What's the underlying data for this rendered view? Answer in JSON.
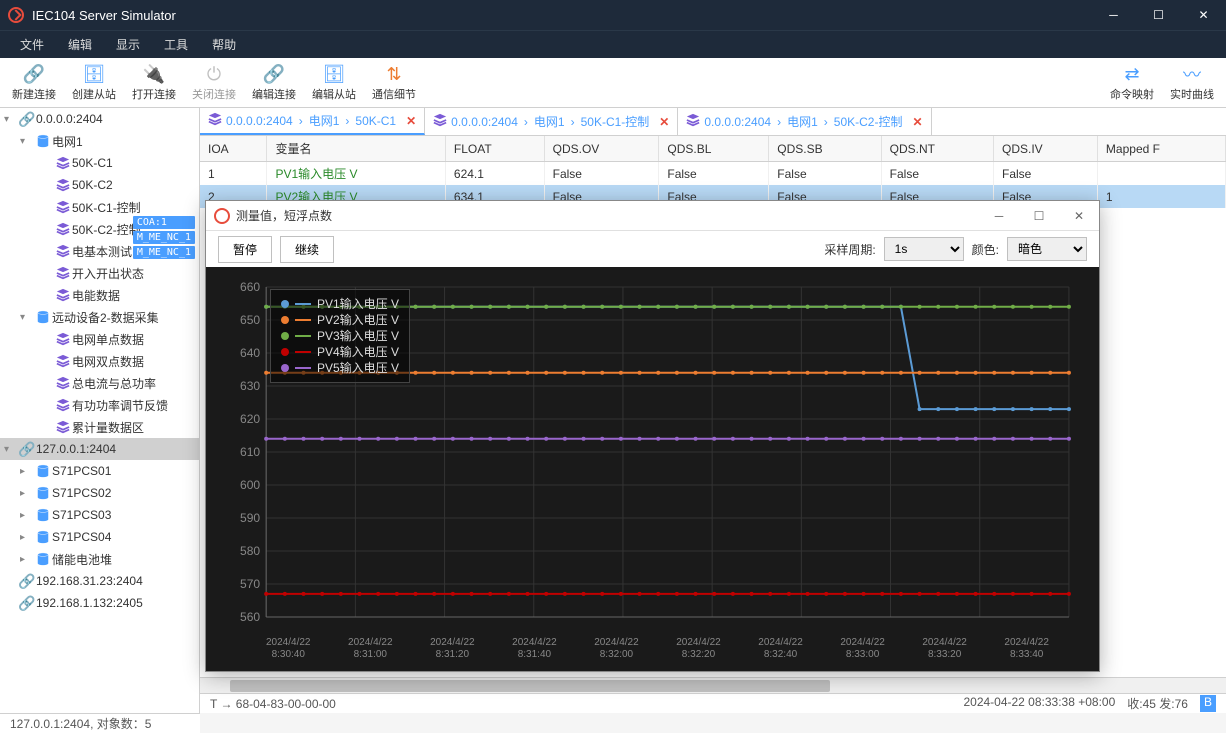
{
  "window": {
    "title": "IEC104 Server Simulator"
  },
  "menu": {
    "file": "文件",
    "edit": "编辑",
    "view": "显示",
    "tools": "工具",
    "help": "帮助"
  },
  "toolbar": {
    "new_conn": "新建连接",
    "create_slave": "创建从站",
    "open_conn": "打开连接",
    "close_conn": "关闭连接",
    "edit_conn": "编辑连接",
    "edit_slave": "编辑从站",
    "comm_detail": "通信细节",
    "cmd_map": "命令映射",
    "realtime": "实时曲线"
  },
  "tree": {
    "n1": {
      "addr": "0.0.0.0:2404"
    },
    "n1_net": "电网1",
    "n1_children": [
      "50K-C1",
      "50K-C2",
      "50K-C1-控制",
      "50K-C2-控制",
      "电基本测试区",
      "开入开出状态",
      "电能数据"
    ],
    "n1_dev2": "远动设备2-数据采集",
    "n1_dev2_children": [
      "电网单点数据",
      "电网双点数据",
      "总电流与总功率",
      "有功功率调节反馈",
      "累计量数据区"
    ],
    "n2": {
      "addr": "127.0.0.1:2404"
    },
    "n2_children": [
      "S71PCS01",
      "S71PCS02",
      "S71PCS03",
      "S71PCS04",
      "储能电池堆"
    ],
    "n3": "192.168.31.23:2404",
    "n4": "192.168.1.132:2405",
    "badges": [
      "COA:1",
      "M_ME_NC_1",
      "M_ME_NC_1"
    ]
  },
  "tabs": [
    {
      "parts": [
        "0.0.0.0:2404",
        "电网1",
        "50K-C1"
      ],
      "active": true
    },
    {
      "parts": [
        "0.0.0.0:2404",
        "电网1",
        "50K-C1-控制"
      ]
    },
    {
      "parts": [
        "0.0.0.0:2404",
        "电网1",
        "50K-C2-控制"
      ]
    }
  ],
  "grid": {
    "columns": [
      "IOA",
      "变量名",
      "FLOAT",
      "QDS.OV",
      "QDS.BL",
      "QDS.SB",
      "QDS.NT",
      "QDS.IV",
      "Mapped F"
    ],
    "rows": [
      {
        "ioa": "1",
        "name": "PV1输入电压 V",
        "val": "624.1",
        "ov": "False",
        "bl": "False",
        "sb": "False",
        "nt": "False",
        "iv": "False",
        "map": ""
      },
      {
        "ioa": "2",
        "name": "PV2输入电压 V",
        "val": "634.1",
        "ov": "False",
        "bl": "False",
        "sb": "False",
        "nt": "False",
        "iv": "False",
        "map": "1",
        "hl": true
      }
    ]
  },
  "dialog": {
    "title": "测量值，短浮点数",
    "pause": "暂停",
    "continue": "继续",
    "period_label": "采样周期:",
    "period_value": "1s",
    "color_label": "颜色:",
    "color_value": "暗色"
  },
  "chart": {
    "type": "line",
    "background_color": "#1a1a1a",
    "grid_color": "#333333",
    "axis_color": "#666666",
    "text_color": "#888888",
    "ylim": [
      560,
      660
    ],
    "ytick_step": 10,
    "yticks": [
      560,
      570,
      580,
      590,
      600,
      610,
      620,
      630,
      640,
      650,
      660
    ],
    "xlabels": [
      "2024/4/22\n8:30:40",
      "2024/4/22\n8:31:00",
      "2024/4/22\n8:31:20",
      "2024/4/22\n8:31:40",
      "2024/4/22\n8:32:00",
      "2024/4/22\n8:32:20",
      "2024/4/22\n8:32:40",
      "2024/4/22\n8:33:00",
      "2024/4/22\n8:33:20",
      "2024/4/22\n8:33:40"
    ],
    "series": [
      {
        "name": "PV1输入电压 V",
        "color": "#5b9bd5",
        "values": [
          654,
          654,
          654,
          654,
          654,
          654,
          654,
          654,
          654,
          654,
          654,
          654,
          654,
          654,
          654,
          654,
          654,
          654,
          654,
          654,
          654,
          654,
          654,
          654,
          654,
          654,
          654,
          654,
          654,
          654,
          654,
          654,
          654,
          654,
          654,
          623,
          623,
          623,
          623,
          623,
          623,
          623,
          623,
          623
        ]
      },
      {
        "name": "PV2输入电压 V",
        "color": "#ed7d31",
        "values": [
          634,
          634,
          634,
          634,
          634,
          634,
          634,
          634,
          634,
          634,
          634,
          634,
          634,
          634,
          634,
          634,
          634,
          634,
          634,
          634,
          634,
          634,
          634,
          634,
          634,
          634,
          634,
          634,
          634,
          634,
          634,
          634,
          634,
          634,
          634,
          634,
          634,
          634,
          634,
          634,
          634,
          634,
          634,
          634
        ]
      },
      {
        "name": "PV3输入电压 V",
        "color": "#70ad47",
        "values": [
          654,
          654,
          654,
          654,
          654,
          654,
          654,
          654,
          654,
          654,
          654,
          654,
          654,
          654,
          654,
          654,
          654,
          654,
          654,
          654,
          654,
          654,
          654,
          654,
          654,
          654,
          654,
          654,
          654,
          654,
          654,
          654,
          654,
          654,
          654,
          654,
          654,
          654,
          654,
          654,
          654,
          654,
          654,
          654
        ]
      },
      {
        "name": "PV4输入电压 V",
        "color": "#c00000",
        "values": [
          567,
          567,
          567,
          567,
          567,
          567,
          567,
          567,
          567,
          567,
          567,
          567,
          567,
          567,
          567,
          567,
          567,
          567,
          567,
          567,
          567,
          567,
          567,
          567,
          567,
          567,
          567,
          567,
          567,
          567,
          567,
          567,
          567,
          567,
          567,
          567,
          567,
          567,
          567,
          567,
          567,
          567,
          567,
          567
        ]
      },
      {
        "name": "PV5输入电压 V",
        "color": "#9966cc",
        "values": [
          614,
          614,
          614,
          614,
          614,
          614,
          614,
          614,
          614,
          614,
          614,
          614,
          614,
          614,
          614,
          614,
          614,
          614,
          614,
          614,
          614,
          614,
          614,
          614,
          614,
          614,
          614,
          614,
          614,
          614,
          614,
          614,
          614,
          614,
          614,
          614,
          614,
          614,
          614,
          614,
          614,
          614,
          614,
          614
        ]
      }
    ]
  },
  "status": {
    "left": "127.0.0.1:2404, 对象数：5",
    "mid": "T → 68-04-83-00-00-00",
    "time": "2024-04-22 08:33:38 +08:00",
    "rx": "收:45 发:76"
  },
  "colors": {
    "link": "#e74c3c",
    "db": "#4a9eff",
    "stack": "#7b5bd6"
  }
}
